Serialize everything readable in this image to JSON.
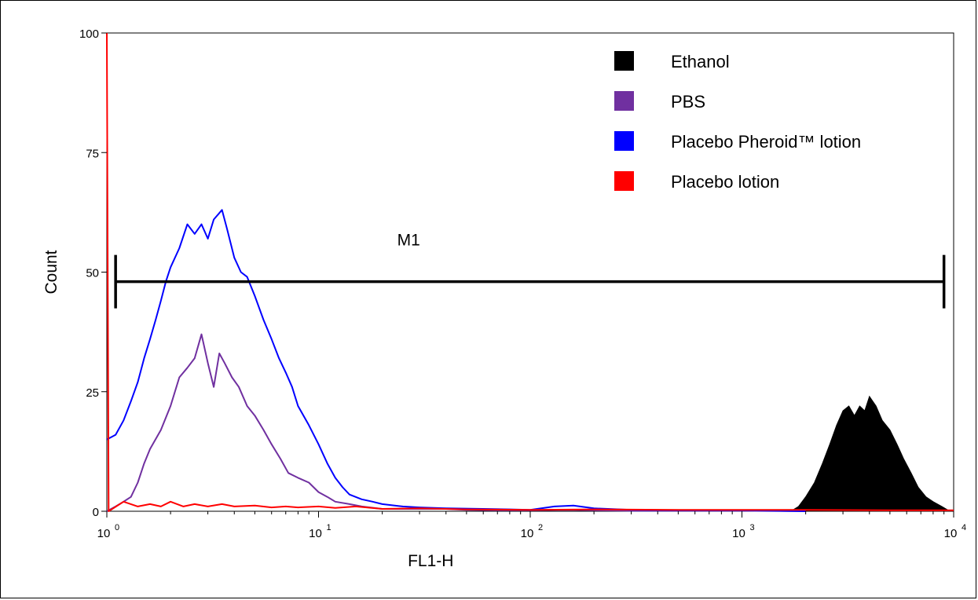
{
  "chart_data": {
    "type": "line",
    "xlabel": "FL1-H",
    "ylabel": "Count",
    "x_scale": "log",
    "xlim": [
      1,
      10000
    ],
    "ylim": [
      0,
      100
    ],
    "x_ticks": [
      {
        "value": 1,
        "base": "10",
        "exp": "0"
      },
      {
        "value": 10,
        "base": "10",
        "exp": "1"
      },
      {
        "value": 100,
        "base": "10",
        "exp": "2"
      },
      {
        "value": 1000,
        "base": "10",
        "exp": "3"
      },
      {
        "value": 10000,
        "base": "10",
        "exp": "4"
      }
    ],
    "y_ticks": [
      {
        "value": 0,
        "label": "0"
      },
      {
        "value": 25,
        "label": "25"
      },
      {
        "value": 50,
        "label": "50"
      },
      {
        "value": 75,
        "label": "75"
      },
      {
        "value": 100,
        "label": "100"
      }
    ],
    "grid": false,
    "legend_position": "top-right",
    "marker": {
      "label": "M1",
      "x_start": 1.1,
      "x_end": 9000,
      "y": 48
    },
    "series": [
      {
        "name": "Ethanol",
        "color": "#000000",
        "fill": true,
        "points": [
          [
            1700,
            0
          ],
          [
            1850,
            1
          ],
          [
            2000,
            3
          ],
          [
            2200,
            6
          ],
          [
            2400,
            10
          ],
          [
            2600,
            14
          ],
          [
            2800,
            18
          ],
          [
            3000,
            21
          ],
          [
            3200,
            22
          ],
          [
            3400,
            20
          ],
          [
            3600,
            22
          ],
          [
            3800,
            21
          ],
          [
            4000,
            24
          ],
          [
            4300,
            22
          ],
          [
            4600,
            19
          ],
          [
            5000,
            17
          ],
          [
            5400,
            14
          ],
          [
            5800,
            11
          ],
          [
            6300,
            8
          ],
          [
            6800,
            5
          ],
          [
            7400,
            3
          ],
          [
            8000,
            2
          ],
          [
            8800,
            1
          ],
          [
            9600,
            0
          ]
        ]
      },
      {
        "name": "PBS",
        "color": "#7030a0",
        "fill": false,
        "points": [
          [
            1,
            0
          ],
          [
            1.1,
            1
          ],
          [
            1.2,
            2
          ],
          [
            1.3,
            3
          ],
          [
            1.4,
            6
          ],
          [
            1.5,
            10
          ],
          [
            1.6,
            13
          ],
          [
            1.8,
            17
          ],
          [
            2.0,
            22
          ],
          [
            2.2,
            28
          ],
          [
            2.4,
            30
          ],
          [
            2.6,
            32
          ],
          [
            2.8,
            37
          ],
          [
            3.0,
            31
          ],
          [
            3.2,
            26
          ],
          [
            3.4,
            33
          ],
          [
            3.6,
            31
          ],
          [
            3.9,
            28
          ],
          [
            4.2,
            26
          ],
          [
            4.6,
            22
          ],
          [
            5.0,
            20
          ],
          [
            5.5,
            17
          ],
          [
            6.0,
            14
          ],
          [
            6.6,
            11
          ],
          [
            7.2,
            8
          ],
          [
            8.0,
            7
          ],
          [
            9.0,
            6
          ],
          [
            10,
            4
          ],
          [
            11,
            3
          ],
          [
            12,
            2
          ],
          [
            14,
            1.5
          ],
          [
            16,
            1
          ],
          [
            20,
            0.5
          ],
          [
            30,
            0.5
          ],
          [
            40,
            0.5
          ],
          [
            50,
            0.3
          ],
          [
            70,
            0.2
          ],
          [
            100,
            0.2
          ],
          [
            150,
            0.3
          ],
          [
            200,
            0.2
          ],
          [
            300,
            0.1
          ],
          [
            600,
            0.1
          ],
          [
            1000,
            0.1
          ],
          [
            2000,
            0
          ]
        ]
      },
      {
        "name": "Placebo Pheroid™ lotion",
        "color": "#0000ff",
        "fill": false,
        "points": [
          [
            1,
            15
          ],
          [
            1.1,
            16
          ],
          [
            1.2,
            19
          ],
          [
            1.3,
            23
          ],
          [
            1.4,
            27
          ],
          [
            1.5,
            32
          ],
          [
            1.6,
            36
          ],
          [
            1.7,
            40
          ],
          [
            1.8,
            44
          ],
          [
            1.9,
            48
          ],
          [
            2.0,
            51
          ],
          [
            2.2,
            55
          ],
          [
            2.4,
            60
          ],
          [
            2.6,
            58
          ],
          [
            2.8,
            60
          ],
          [
            3.0,
            57
          ],
          [
            3.2,
            61
          ],
          [
            3.5,
            63
          ],
          [
            3.7,
            59
          ],
          [
            4.0,
            53
          ],
          [
            4.3,
            50
          ],
          [
            4.6,
            49
          ],
          [
            5.0,
            45
          ],
          [
            5.5,
            40
          ],
          [
            6.0,
            36
          ],
          [
            6.5,
            32
          ],
          [
            7.0,
            29
          ],
          [
            7.5,
            26
          ],
          [
            8.0,
            22
          ],
          [
            9.0,
            18
          ],
          [
            10,
            14
          ],
          [
            11,
            10
          ],
          [
            12,
            7
          ],
          [
            13,
            5
          ],
          [
            14,
            3.5
          ],
          [
            16,
            2.5
          ],
          [
            18,
            2
          ],
          [
            20,
            1.5
          ],
          [
            25,
            1
          ],
          [
            30,
            0.8
          ],
          [
            40,
            0.6
          ],
          [
            60,
            0.5
          ],
          [
            80,
            0.4
          ],
          [
            100,
            0.3
          ],
          [
            130,
            1
          ],
          [
            160,
            1.2
          ],
          [
            200,
            0.6
          ],
          [
            300,
            0.3
          ],
          [
            500,
            0.2
          ],
          [
            1000,
            0.2
          ],
          [
            2000,
            0
          ]
        ]
      },
      {
        "name": "Placebo lotion",
        "color": "#ff0000",
        "fill": false,
        "points": [
          [
            1,
            100
          ],
          [
            1.02,
            0
          ],
          [
            1.2,
            2
          ],
          [
            1.4,
            1
          ],
          [
            1.6,
            1.5
          ],
          [
            1.8,
            1
          ],
          [
            2.0,
            2
          ],
          [
            2.3,
            1
          ],
          [
            2.6,
            1.5
          ],
          [
            3.0,
            1
          ],
          [
            3.5,
            1.5
          ],
          [
            4,
            1
          ],
          [
            5,
            1.2
          ],
          [
            6,
            0.8
          ],
          [
            7,
            1
          ],
          [
            8,
            0.8
          ],
          [
            10,
            1
          ],
          [
            12,
            0.7
          ],
          [
            15,
            1
          ],
          [
            20,
            0.5
          ],
          [
            30,
            0.6
          ],
          [
            50,
            0.4
          ],
          [
            100,
            0.3
          ],
          [
            200,
            0.4
          ],
          [
            500,
            0.3
          ],
          [
            1000,
            0.3
          ],
          [
            2000,
            0.3
          ],
          [
            5000,
            0.2
          ],
          [
            10000,
            0.2
          ]
        ]
      }
    ]
  }
}
